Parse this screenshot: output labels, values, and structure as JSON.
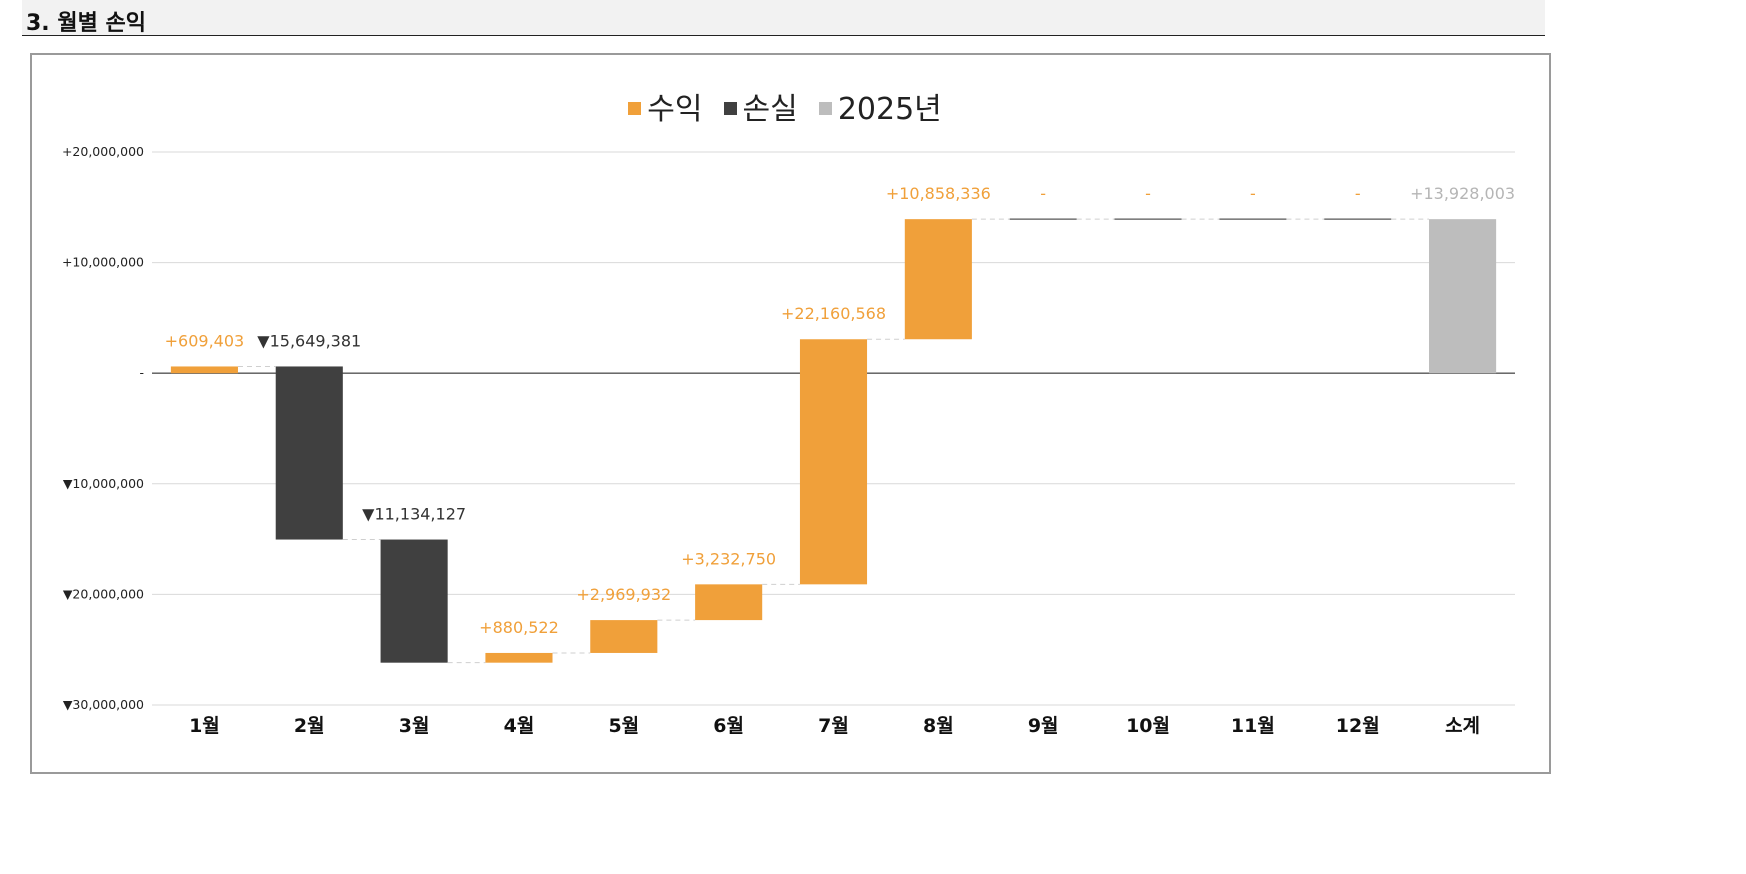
{
  "section": {
    "title": "3. 월별 손익"
  },
  "colors": {
    "profit": "#f0a03a",
    "loss": "#404040",
    "total": "#bdbdbd",
    "grid": "#d9d9d9",
    "zero": "#555555"
  },
  "legend": [
    {
      "label": "수익",
      "color": "#f0a03a"
    },
    {
      "label": "손실",
      "color": "#404040"
    },
    {
      "label": "2025년",
      "color": "#bdbdbd"
    }
  ],
  "chart_data": {
    "type": "bar",
    "subtype": "waterfall",
    "categories": [
      "1월",
      "2월",
      "3월",
      "4월",
      "5월",
      "6월",
      "7월",
      "8월",
      "9월",
      "10월",
      "11월",
      "12월",
      "소계"
    ],
    "values": [
      609403,
      -15649381,
      -11134127,
      880522,
      2969932,
      3232750,
      22160568,
      10858336,
      0,
      0,
      0,
      0,
      13928003
    ],
    "kinds": [
      "profit",
      "loss",
      "loss",
      "profit",
      "profit",
      "profit",
      "profit",
      "profit",
      "none",
      "none",
      "none",
      "none",
      "total"
    ],
    "data_labels": [
      "+609,403",
      "▼15,649,381",
      "▼11,134,127",
      "+880,522",
      "+2,969,932",
      "+3,232,750",
      "+22,160,568",
      "+10,858,336",
      "-",
      "-",
      "-",
      "-",
      "+13,928,003"
    ],
    "yticks": [
      {
        "value": 20000000,
        "label": "+20,000,000"
      },
      {
        "value": 10000000,
        "label": "+10,000,000"
      },
      {
        "value": 0,
        "label": "-"
      },
      {
        "value": -10000000,
        "label": "▼10,000,000"
      },
      {
        "value": -20000000,
        "label": "▼20,000,000"
      },
      {
        "value": -30000000,
        "label": "▼30,000,000"
      }
    ],
    "ylim": [
      -30000000,
      20000000
    ],
    "grid": true,
    "legend_position": "top-center"
  }
}
